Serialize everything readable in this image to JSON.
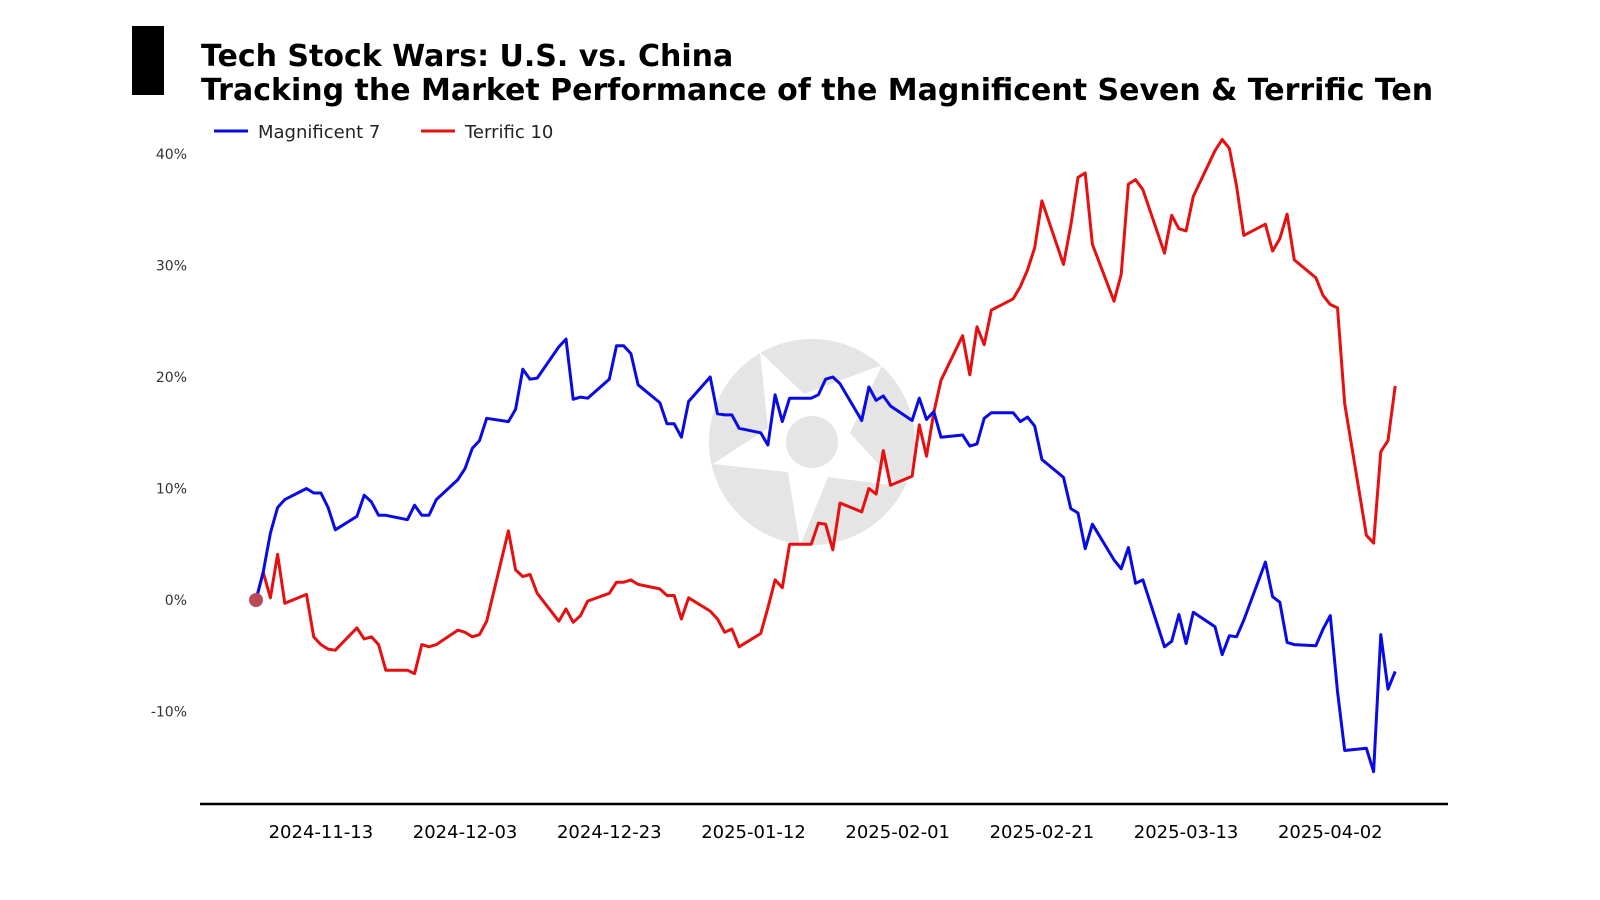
{
  "chart_data": {
    "type": "line",
    "title": "Tech Stock Wars: U.S. vs. China",
    "subtitle": "Tracking the Market Performance of the Magnificent Seven & Terrific Ten",
    "xlabel": "",
    "ylabel": "",
    "x_range": [
      "2024-11-04",
      "2025-04-10"
    ],
    "ylim": [
      -0.185,
      0.415
    ],
    "y_ticks": [
      {
        "value": 0.4,
        "label": "40%"
      },
      {
        "value": 0.3,
        "label": "30%"
      },
      {
        "value": 0.2,
        "label": "20%"
      },
      {
        "value": 0.1,
        "label": "10%"
      },
      {
        "value": 0.0,
        "label": "0%"
      },
      {
        "value": -0.1,
        "label": "-10%"
      }
    ],
    "x_ticks": [
      {
        "value": "2024-11-13",
        "label": "2024-11-13"
      },
      {
        "value": "2024-12-03",
        "label": "2024-12-03"
      },
      {
        "value": "2024-12-23",
        "label": "2024-12-23"
      },
      {
        "value": "2025-01-12",
        "label": "2025-01-12"
      },
      {
        "value": "2025-02-01",
        "label": "2025-02-01"
      },
      {
        "value": "2025-02-21",
        "label": "2025-02-21"
      },
      {
        "value": "2025-03-13",
        "label": "2025-03-13"
      },
      {
        "value": "2025-04-02",
        "label": "2025-04-02"
      }
    ],
    "grid": false,
    "legend_position": "top-left",
    "start_marker": {
      "date": "2024-11-04",
      "value": 0.0,
      "color": "#b84a5a"
    },
    "series": [
      {
        "name": "Magnificent 7",
        "color": "#0a0ae6",
        "points": [
          [
            "2024-11-04",
            0.0
          ],
          [
            "2024-11-05",
            0.025
          ],
          [
            "2024-11-06",
            0.06
          ],
          [
            "2024-11-07",
            0.083
          ],
          [
            "2024-11-08",
            0.09
          ],
          [
            "2024-11-11",
            0.1
          ],
          [
            "2024-11-12",
            0.096
          ],
          [
            "2024-11-13",
            0.096
          ],
          [
            "2024-11-14",
            0.083
          ],
          [
            "2024-11-15",
            0.063
          ],
          [
            "2024-11-18",
            0.075
          ],
          [
            "2024-11-19",
            0.094
          ],
          [
            "2024-11-20",
            0.088
          ],
          [
            "2024-11-21",
            0.076
          ],
          [
            "2024-11-22",
            0.076
          ],
          [
            "2024-11-25",
            0.072
          ],
          [
            "2024-11-26",
            0.085
          ],
          [
            "2024-11-27",
            0.076
          ],
          [
            "2024-11-28",
            0.076
          ],
          [
            "2024-11-29",
            0.09
          ],
          [
            "2024-12-02",
            0.108
          ],
          [
            "2024-12-03",
            0.118
          ],
          [
            "2024-12-04",
            0.136
          ],
          [
            "2024-12-05",
            0.143
          ],
          [
            "2024-12-06",
            0.163
          ],
          [
            "2024-12-09",
            0.16
          ],
          [
            "2024-12-10",
            0.171
          ],
          [
            "2024-12-11",
            0.207
          ],
          [
            "2024-12-12",
            0.198
          ],
          [
            "2024-12-13",
            0.199
          ],
          [
            "2024-12-16",
            0.227
          ],
          [
            "2024-12-17",
            0.234
          ],
          [
            "2024-12-18",
            0.18
          ],
          [
            "2024-12-19",
            0.182
          ],
          [
            "2024-12-20",
            0.181
          ],
          [
            "2024-12-23",
            0.198
          ],
          [
            "2024-12-24",
            0.228
          ],
          [
            "2024-12-25",
            0.228
          ],
          [
            "2024-12-26",
            0.221
          ],
          [
            "2024-12-27",
            0.193
          ],
          [
            "2024-12-30",
            0.177
          ],
          [
            "2024-12-31",
            0.158
          ],
          [
            "2025-01-01",
            0.158
          ],
          [
            "2025-01-02",
            0.146
          ],
          [
            "2025-01-03",
            0.178
          ],
          [
            "2025-01-06",
            0.2
          ],
          [
            "2025-01-07",
            0.167
          ],
          [
            "2025-01-08",
            0.166
          ],
          [
            "2025-01-09",
            0.166
          ],
          [
            "2025-01-10",
            0.154
          ],
          [
            "2025-01-13",
            0.15
          ],
          [
            "2025-01-14",
            0.139
          ],
          [
            "2025-01-15",
            0.184
          ],
          [
            "2025-01-16",
            0.16
          ],
          [
            "2025-01-17",
            0.181
          ],
          [
            "2025-01-20",
            0.181
          ],
          [
            "2025-01-21",
            0.184
          ],
          [
            "2025-01-22",
            0.198
          ],
          [
            "2025-01-23",
            0.2
          ],
          [
            "2025-01-24",
            0.194
          ],
          [
            "2025-01-27",
            0.161
          ],
          [
            "2025-01-28",
            0.191
          ],
          [
            "2025-01-29",
            0.179
          ],
          [
            "2025-01-30",
            0.183
          ],
          [
            "2025-01-31",
            0.174
          ],
          [
            "2025-02-03",
            0.161
          ],
          [
            "2025-02-04",
            0.181
          ],
          [
            "2025-02-05",
            0.162
          ],
          [
            "2025-02-06",
            0.169
          ],
          [
            "2025-02-07",
            0.146
          ],
          [
            "2025-02-10",
            0.148
          ],
          [
            "2025-02-11",
            0.138
          ],
          [
            "2025-02-12",
            0.14
          ],
          [
            "2025-02-13",
            0.163
          ],
          [
            "2025-02-14",
            0.168
          ],
          [
            "2025-02-17",
            0.168
          ],
          [
            "2025-02-18",
            0.16
          ],
          [
            "2025-02-19",
            0.164
          ],
          [
            "2025-02-20",
            0.156
          ],
          [
            "2025-02-21",
            0.126
          ],
          [
            "2025-02-24",
            0.11
          ],
          [
            "2025-02-25",
            0.082
          ],
          [
            "2025-02-26",
            0.078
          ],
          [
            "2025-02-27",
            0.046
          ],
          [
            "2025-02-28",
            0.068
          ],
          [
            "2025-03-03",
            0.036
          ],
          [
            "2025-03-04",
            0.028
          ],
          [
            "2025-03-05",
            0.047
          ],
          [
            "2025-03-06",
            0.015
          ],
          [
            "2025-03-07",
            0.018
          ],
          [
            "2025-03-10",
            -0.042
          ],
          [
            "2025-03-11",
            -0.037
          ],
          [
            "2025-03-12",
            -0.013
          ],
          [
            "2025-03-13",
            -0.039
          ],
          [
            "2025-03-14",
            -0.011
          ],
          [
            "2025-03-17",
            -0.024
          ],
          [
            "2025-03-18",
            -0.049
          ],
          [
            "2025-03-19",
            -0.032
          ],
          [
            "2025-03-20",
            -0.033
          ],
          [
            "2025-03-21",
            -0.018
          ],
          [
            "2025-03-24",
            0.034
          ],
          [
            "2025-03-25",
            0.003
          ],
          [
            "2025-03-26",
            -0.002
          ],
          [
            "2025-03-27",
            -0.038
          ],
          [
            "2025-03-28",
            -0.04
          ],
          [
            "2025-03-31",
            -0.041
          ],
          [
            "2025-04-01",
            -0.026
          ],
          [
            "2025-04-02",
            -0.014
          ],
          [
            "2025-04-03",
            -0.082
          ],
          [
            "2025-04-04",
            -0.135
          ],
          [
            "2025-04-07",
            -0.133
          ],
          [
            "2025-04-08",
            -0.154
          ],
          [
            "2025-04-09",
            -0.031
          ],
          [
            "2025-04-10",
            -0.08
          ],
          [
            "2025-04-11",
            -0.064
          ]
        ]
      },
      {
        "name": "Terrific 10",
        "color": "#e61010",
        "points": [
          [
            "2024-11-04",
            0.0
          ],
          [
            "2024-11-05",
            0.025
          ],
          [
            "2024-11-06",
            0.002
          ],
          [
            "2024-11-07",
            0.041
          ],
          [
            "2024-11-08",
            -0.003
          ],
          [
            "2024-11-11",
            0.005
          ],
          [
            "2024-11-12",
            -0.033
          ],
          [
            "2024-11-13",
            -0.04
          ],
          [
            "2024-11-14",
            -0.044
          ],
          [
            "2024-11-15",
            -0.045
          ],
          [
            "2024-11-18",
            -0.025
          ],
          [
            "2024-11-19",
            -0.035
          ],
          [
            "2024-11-20",
            -0.033
          ],
          [
            "2024-11-21",
            -0.04
          ],
          [
            "2024-11-22",
            -0.063
          ],
          [
            "2024-11-25",
            -0.063
          ],
          [
            "2024-11-26",
            -0.066
          ],
          [
            "2024-11-27",
            -0.04
          ],
          [
            "2024-11-28",
            -0.042
          ],
          [
            "2024-11-29",
            -0.04
          ],
          [
            "2024-12-02",
            -0.027
          ],
          [
            "2024-12-03",
            -0.029
          ],
          [
            "2024-12-04",
            -0.033
          ],
          [
            "2024-12-05",
            -0.031
          ],
          [
            "2024-12-06",
            -0.019
          ],
          [
            "2024-12-09",
            0.062
          ],
          [
            "2024-12-10",
            0.027
          ],
          [
            "2024-12-11",
            0.021
          ],
          [
            "2024-12-12",
            0.023
          ],
          [
            "2024-12-13",
            0.006
          ],
          [
            "2024-12-16",
            -0.019
          ],
          [
            "2024-12-17",
            -0.008
          ],
          [
            "2024-12-18",
            -0.02
          ],
          [
            "2024-12-19",
            -0.014
          ],
          [
            "2024-12-20",
            -0.001
          ],
          [
            "2024-12-23",
            0.006
          ],
          [
            "2024-12-24",
            0.016
          ],
          [
            "2024-12-25",
            0.016
          ],
          [
            "2024-12-26",
            0.018
          ],
          [
            "2024-12-27",
            0.014
          ],
          [
            "2024-12-30",
            0.01
          ],
          [
            "2024-12-31",
            0.004
          ],
          [
            "2025-01-01",
            0.004
          ],
          [
            "2025-01-02",
            -0.017
          ],
          [
            "2025-01-03",
            0.002
          ],
          [
            "2025-01-06",
            -0.01
          ],
          [
            "2025-01-07",
            -0.017
          ],
          [
            "2025-01-08",
            -0.029
          ],
          [
            "2025-01-09",
            -0.026
          ],
          [
            "2025-01-10",
            -0.042
          ],
          [
            "2025-01-13",
            -0.03
          ],
          [
            "2025-01-14",
            -0.007
          ],
          [
            "2025-01-15",
            0.018
          ],
          [
            "2025-01-16",
            0.011
          ],
          [
            "2025-01-17",
            0.05
          ],
          [
            "2025-01-20",
            0.05
          ],
          [
            "2025-01-21",
            0.069
          ],
          [
            "2025-01-22",
            0.068
          ],
          [
            "2025-01-23",
            0.045
          ],
          [
            "2025-01-24",
            0.087
          ],
          [
            "2025-01-27",
            0.079
          ],
          [
            "2025-01-28",
            0.1
          ],
          [
            "2025-01-29",
            0.095
          ],
          [
            "2025-01-30",
            0.134
          ],
          [
            "2025-01-31",
            0.103
          ],
          [
            "2025-02-03",
            0.111
          ],
          [
            "2025-02-04",
            0.157
          ],
          [
            "2025-02-05",
            0.129
          ],
          [
            "2025-02-06",
            0.168
          ],
          [
            "2025-02-07",
            0.197
          ],
          [
            "2025-02-10",
            0.237
          ],
          [
            "2025-02-11",
            0.202
          ],
          [
            "2025-02-12",
            0.245
          ],
          [
            "2025-02-13",
            0.229
          ],
          [
            "2025-02-14",
            0.26
          ],
          [
            "2025-02-17",
            0.27
          ],
          [
            "2025-02-18",
            0.281
          ],
          [
            "2025-02-19",
            0.296
          ],
          [
            "2025-02-20",
            0.316
          ],
          [
            "2025-02-21",
            0.358
          ],
          [
            "2025-02-24",
            0.301
          ],
          [
            "2025-02-25",
            0.336
          ],
          [
            "2025-02-26",
            0.379
          ],
          [
            "2025-02-27",
            0.383
          ],
          [
            "2025-02-28",
            0.319
          ],
          [
            "2025-03-03",
            0.268
          ],
          [
            "2025-03-04",
            0.292
          ],
          [
            "2025-03-05",
            0.373
          ],
          [
            "2025-03-06",
            0.377
          ],
          [
            "2025-03-07",
            0.368
          ],
          [
            "2025-03-10",
            0.311
          ],
          [
            "2025-03-11",
            0.345
          ],
          [
            "2025-03-12",
            0.333
          ],
          [
            "2025-03-13",
            0.331
          ],
          [
            "2025-03-14",
            0.362
          ],
          [
            "2025-03-17",
            0.403
          ],
          [
            "2025-03-18",
            0.413
          ],
          [
            "2025-03-19",
            0.405
          ],
          [
            "2025-03-20",
            0.371
          ],
          [
            "2025-03-21",
            0.327
          ],
          [
            "2025-03-24",
            0.337
          ],
          [
            "2025-03-25",
            0.313
          ],
          [
            "2025-03-26",
            0.324
          ],
          [
            "2025-03-27",
            0.346
          ],
          [
            "2025-03-28",
            0.305
          ],
          [
            "2025-03-31",
            0.289
          ],
          [
            "2025-04-01",
            0.273
          ],
          [
            "2025-04-02",
            0.265
          ],
          [
            "2025-04-03",
            0.262
          ],
          [
            "2025-04-04",
            0.176
          ],
          [
            "2025-04-07",
            0.058
          ],
          [
            "2025-04-08",
            0.051
          ],
          [
            "2025-04-09",
            0.133
          ],
          [
            "2025-04-10",
            0.143
          ],
          [
            "2025-04-11",
            0.192
          ]
        ]
      }
    ]
  }
}
